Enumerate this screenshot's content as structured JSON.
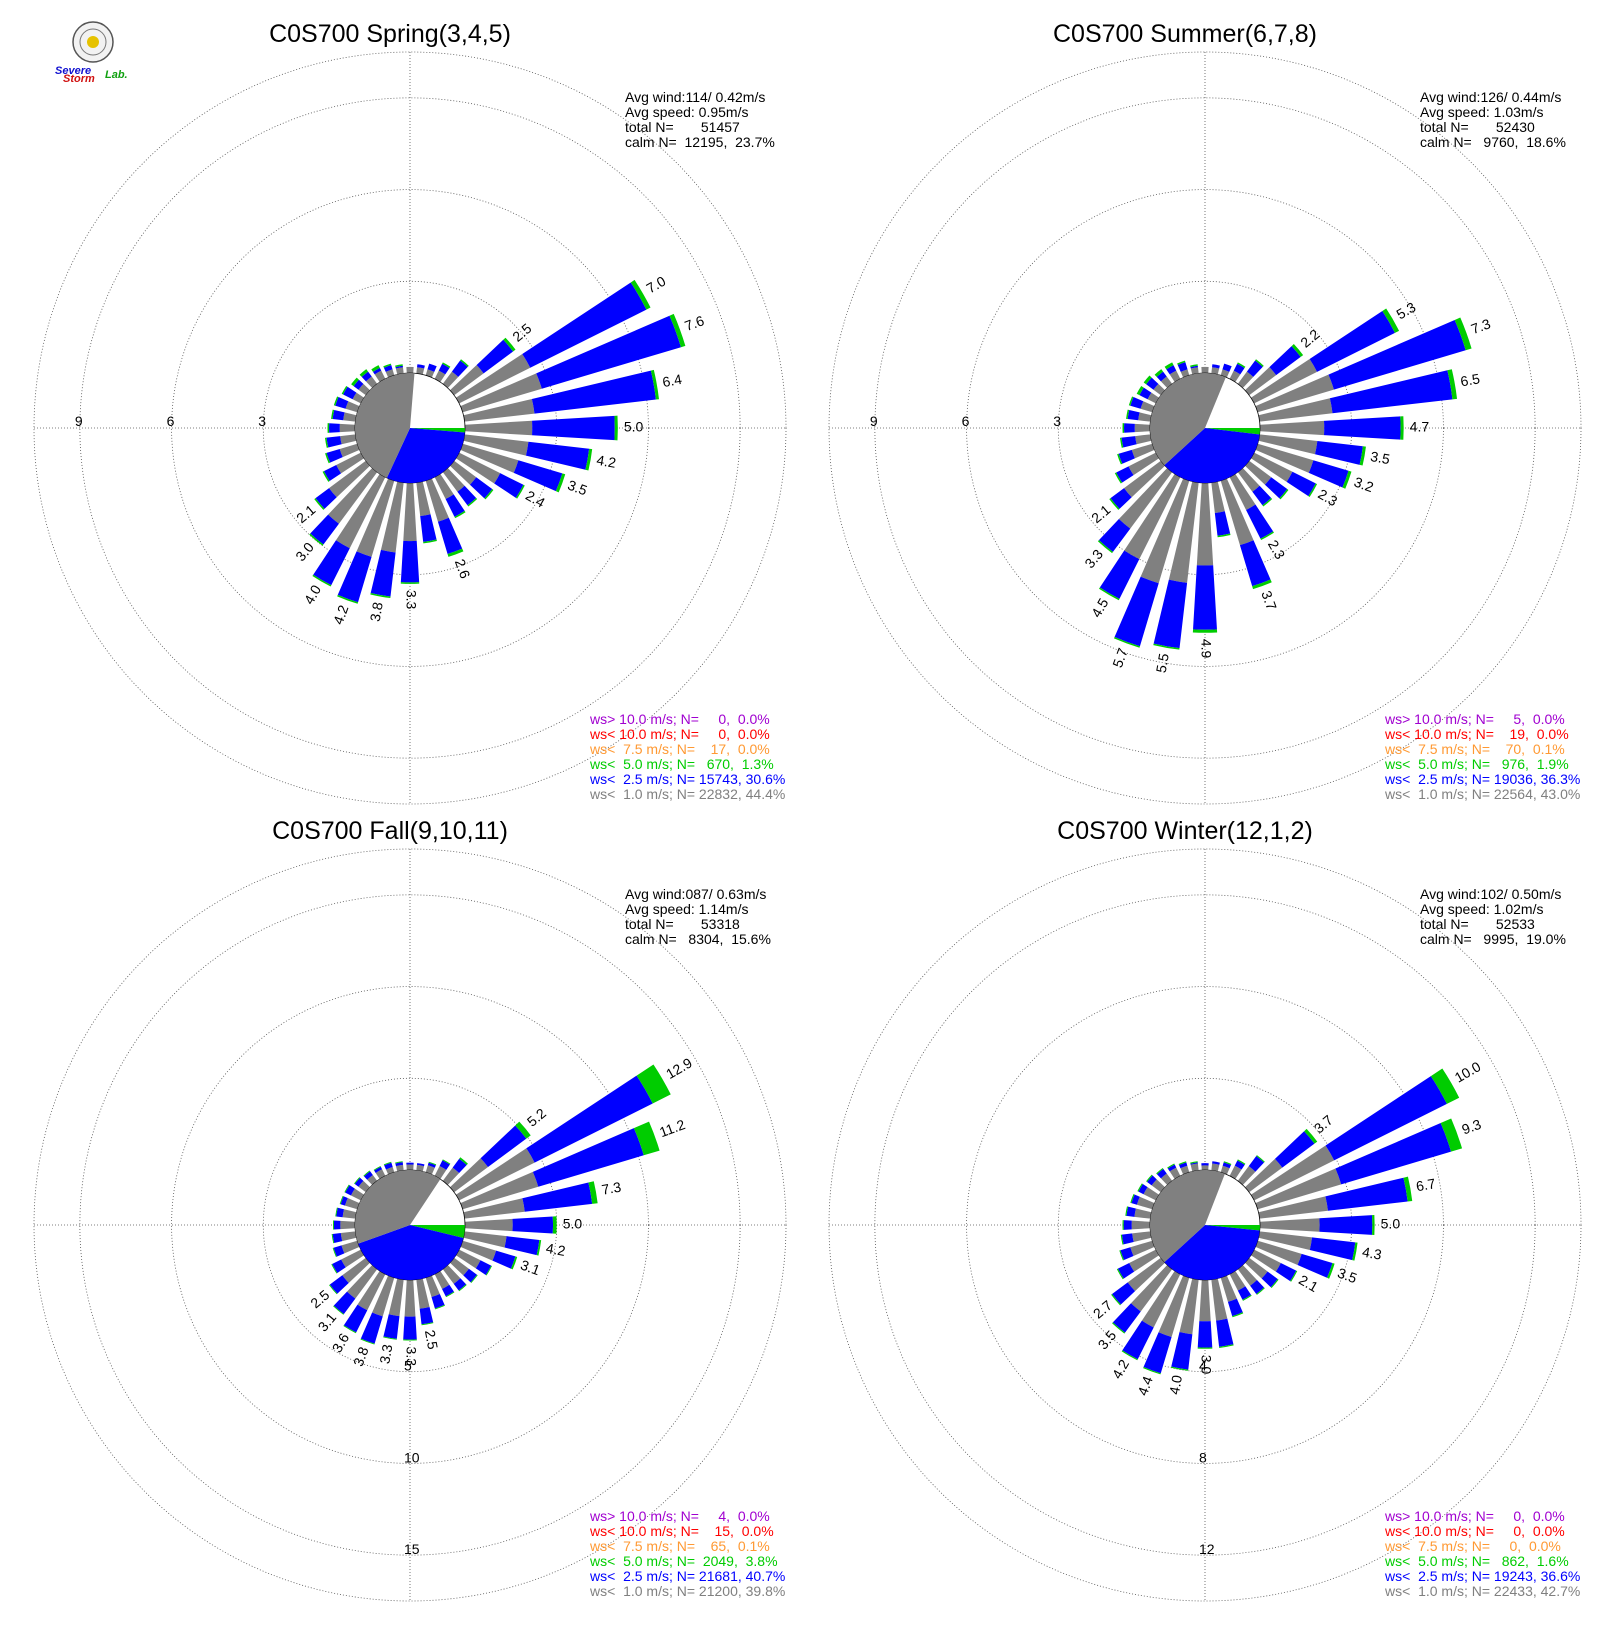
{
  "logo": {
    "word1": "Severe",
    "word2": "Storm",
    "word3": "Lab."
  },
  "colors": {
    "gray": "#808080",
    "blue": "#0000ff",
    "green": "#00cc00",
    "orange": "#ff9933",
    "red": "#ff0000",
    "purple": "#a000d0",
    "grid": "#555555"
  },
  "chart_data": [
    {
      "type": "wind_rose",
      "title": "C0S700 Spring(3,4,5)",
      "stats": [
        "Avg wind:114/ 0.42m/s",
        "Avg speed: 0.95m/s",
        "total N=       51457",
        "calm N=  12195,  23.7%"
      ],
      "ring_labels": [
        "3",
        "6",
        "9"
      ],
      "ring_values": [
        3,
        6,
        9
      ],
      "max_r": 10.5,
      "label_axis": "west",
      "calm_pct": 23.7,
      "calm_fractions": [
        {
          "color": "gray",
          "frac": 0.444
        },
        {
          "color": "blue",
          "frac": 0.306
        },
        {
          "color": "green",
          "frac": 0.013
        }
      ],
      "directions_deg": [
        0,
        10,
        20,
        30,
        40,
        50,
        60,
        70,
        80,
        90,
        100,
        110,
        120,
        130,
        140,
        150,
        160,
        170,
        180,
        190,
        200,
        210,
        220,
        230,
        240,
        250,
        260,
        270,
        280,
        290,
        300,
        310,
        320,
        330,
        340,
        350
      ],
      "totals": [
        0.2,
        0.3,
        0.4,
        0.6,
        1.0,
        2.5,
        7.0,
        7.6,
        6.4,
        5.0,
        4.2,
        3.5,
        2.4,
        1.6,
        1.4,
        1.5,
        2.6,
        2.0,
        3.3,
        3.8,
        4.2,
        4.0,
        3.0,
        2.1,
        1.4,
        1.1,
        1.0,
        0.9,
        0.8,
        0.8,
        0.7,
        0.6,
        0.6,
        0.5,
        0.4,
        0.3
      ],
      "gray": [
        0.2,
        0.2,
        0.2,
        0.3,
        0.5,
        1.2,
        2.6,
        2.7,
        2.3,
        2.2,
        2.1,
        1.9,
        1.5,
        0.9,
        0.8,
        0.8,
        1.4,
        1.1,
        1.9,
        2.3,
        2.6,
        2.6,
        2.1,
        1.5,
        0.9,
        0.6,
        0.5,
        0.5,
        0.4,
        0.4,
        0.3,
        0.3,
        0.3,
        0.3,
        0.2,
        0.2
      ],
      "green": [
        0,
        0,
        0,
        0.05,
        0.05,
        0.1,
        0.15,
        0.15,
        0.1,
        0.1,
        0.1,
        0.1,
        0.05,
        0.05,
        0.05,
        0.05,
        0.1,
        0.05,
        0.05,
        0.05,
        0.05,
        0.05,
        0.05,
        0.05,
        0.05,
        0.05,
        0.05,
        0.05,
        0.05,
        0.05,
        0.05,
        0.1,
        0.1,
        0.1,
        0.05,
        0.05
      ],
      "value_labels": [
        {
          "dir": 50,
          "text": "2.5"
        },
        {
          "dir": 60,
          "text": "7.0"
        },
        {
          "dir": 70,
          "text": "7.6"
        },
        {
          "dir": 80,
          "text": "6.4"
        },
        {
          "dir": 90,
          "text": "5.0"
        },
        {
          "dir": 100,
          "text": "4.2"
        },
        {
          "dir": 110,
          "text": "3.5"
        },
        {
          "dir": 120,
          "text": "2.4"
        },
        {
          "dir": 160,
          "text": "2.6"
        },
        {
          "dir": 180,
          "text": "3.3"
        },
        {
          "dir": 190,
          "text": "3.8"
        },
        {
          "dir": 200,
          "text": "4.2"
        },
        {
          "dir": 210,
          "text": "4.0"
        },
        {
          "dir": 220,
          "text": "3.0"
        },
        {
          "dir": 230,
          "text": "2.1"
        }
      ],
      "legend": [
        {
          "color": "purple",
          "text": "ws> 10.0 m/s; N=     0,  0.0%"
        },
        {
          "color": "red",
          "text": "ws< 10.0 m/s; N=     0,  0.0%"
        },
        {
          "color": "orange",
          "text": "ws<  7.5 m/s; N=    17,  0.0%"
        },
        {
          "color": "green",
          "text": "ws<  5.0 m/s; N=   670,  1.3%"
        },
        {
          "color": "blue",
          "text": "ws<  2.5 m/s; N= 15743, 30.6%"
        },
        {
          "color": "gray",
          "text": "ws<  1.0 m/s; N= 22832, 44.4%"
        }
      ]
    },
    {
      "type": "wind_rose",
      "title": "C0S700 Summer(6,7,8)",
      "stats": [
        "Avg wind:126/ 0.44m/s",
        "Avg speed: 1.03m/s",
        "total N=       52430",
        "calm N=   9760,  18.6%"
      ],
      "ring_labels": [
        "3",
        "6",
        "9"
      ],
      "ring_values": [
        3,
        6,
        9
      ],
      "max_r": 10.5,
      "label_axis": "west",
      "calm_pct": 18.6,
      "calm_fractions": [
        {
          "color": "gray",
          "frac": 0.43
        },
        {
          "color": "blue",
          "frac": 0.363
        },
        {
          "color": "green",
          "frac": 0.019
        }
      ],
      "directions_deg": [
        0,
        10,
        20,
        30,
        40,
        50,
        60,
        70,
        80,
        90,
        100,
        110,
        120,
        130,
        140,
        150,
        160,
        170,
        180,
        190,
        200,
        210,
        220,
        230,
        240,
        250,
        260,
        270,
        280,
        290,
        300,
        310,
        320,
        330,
        340,
        350
      ],
      "totals": [
        0.2,
        0.3,
        0.4,
        0.6,
        1.0,
        2.2,
        5.3,
        7.3,
        6.5,
        4.7,
        3.5,
        3.2,
        2.3,
        1.6,
        1.4,
        2.3,
        3.7,
        1.8,
        4.9,
        5.5,
        5.7,
        4.5,
        3.3,
        2.1,
        1.5,
        1.2,
        1.0,
        0.9,
        0.8,
        0.8,
        0.7,
        0.7,
        0.6,
        0.6,
        0.5,
        0.3
      ],
      "gray": [
        0.2,
        0.2,
        0.2,
        0.3,
        0.5,
        1.1,
        2.3,
        2.6,
        2.4,
        2.1,
        1.9,
        1.9,
        1.4,
        0.9,
        0.8,
        1.2,
        2.2,
        1.0,
        2.7,
        3.3,
        3.5,
        3.0,
        2.3,
        1.5,
        1.0,
        0.7,
        0.5,
        0.5,
        0.4,
        0.4,
        0.3,
        0.3,
        0.3,
        0.3,
        0.2,
        0.2
      ],
      "green": [
        0,
        0,
        0,
        0.05,
        0.05,
        0.1,
        0.15,
        0.2,
        0.15,
        0.1,
        0.1,
        0.1,
        0.05,
        0.05,
        0.05,
        0.05,
        0.1,
        0.05,
        0.1,
        0.05,
        0.05,
        0.05,
        0.05,
        0.05,
        0.05,
        0.05,
        0.05,
        0.05,
        0.05,
        0.05,
        0.1,
        0.1,
        0.1,
        0.1,
        0.05,
        0.05
      ],
      "value_labels": [
        {
          "dir": 50,
          "text": "2.2"
        },
        {
          "dir": 60,
          "text": "5.3"
        },
        {
          "dir": 70,
          "text": "7.3"
        },
        {
          "dir": 80,
          "text": "6.5"
        },
        {
          "dir": 90,
          "text": "4.7"
        },
        {
          "dir": 100,
          "text": "3.5"
        },
        {
          "dir": 110,
          "text": "3.2"
        },
        {
          "dir": 120,
          "text": "2.3"
        },
        {
          "dir": 150,
          "text": "2.3"
        },
        {
          "dir": 160,
          "text": "3.7"
        },
        {
          "dir": 180,
          "text": "4.9"
        },
        {
          "dir": 190,
          "text": "5.5"
        },
        {
          "dir": 200,
          "text": "5.7"
        },
        {
          "dir": 210,
          "text": "4.5"
        },
        {
          "dir": 220,
          "text": "3.3"
        },
        {
          "dir": 230,
          "text": "2.1"
        }
      ],
      "legend": [
        {
          "color": "purple",
          "text": "ws> 10.0 m/s; N=     5,  0.0%"
        },
        {
          "color": "red",
          "text": "ws< 10.0 m/s; N=    19,  0.0%"
        },
        {
          "color": "orange",
          "text": "ws<  7.5 m/s; N=    70,  0.1%"
        },
        {
          "color": "green",
          "text": "ws<  5.0 m/s; N=   976,  1.9%"
        },
        {
          "color": "blue",
          "text": "ws<  2.5 m/s; N= 19036, 36.3%"
        },
        {
          "color": "gray",
          "text": "ws<  1.0 m/s; N= 22564, 43.0%"
        }
      ]
    },
    {
      "type": "wind_rose",
      "title": "C0S700 Fall(9,10,11)",
      "stats": [
        "Avg wind:087/ 0.63m/s",
        "Avg speed: 1.14m/s",
        "total N=       53318",
        "calm N=   8304,  15.6%"
      ],
      "ring_labels": [
        "5",
        "10",
        "15"
      ],
      "ring_values": [
        5,
        10,
        15
      ],
      "max_r": 17.5,
      "label_axis": "south",
      "calm_pct": 15.6,
      "calm_fractions": [
        {
          "color": "gray",
          "frac": 0.398
        },
        {
          "color": "blue",
          "frac": 0.407
        },
        {
          "color": "green",
          "frac": 0.038
        }
      ],
      "directions_deg": [
        0,
        10,
        20,
        30,
        40,
        50,
        60,
        70,
        80,
        90,
        100,
        110,
        120,
        130,
        140,
        150,
        160,
        170,
        180,
        190,
        200,
        210,
        220,
        230,
        240,
        250,
        260,
        270,
        280,
        290,
        300,
        310,
        320,
        330,
        340,
        350
      ],
      "totals": [
        0.4,
        0.4,
        0.6,
        1.0,
        1.6,
        5.2,
        12.9,
        11.2,
        7.3,
        5.0,
        4.2,
        3.1,
        2.0,
        1.6,
        1.5,
        1.4,
        1.8,
        2.5,
        3.3,
        3.3,
        3.8,
        3.6,
        3.1,
        2.5,
        1.8,
        1.4,
        1.3,
        1.2,
        1.1,
        1.0,
        1.0,
        0.8,
        0.7,
        0.6,
        0.6,
        0.5
      ],
      "gray": [
        0.3,
        0.3,
        0.4,
        0.6,
        0.9,
        2.3,
        4.6,
        4.3,
        3.3,
        2.6,
        2.3,
        1.9,
        1.3,
        1.0,
        1.0,
        0.9,
        1.1,
        1.6,
        2.0,
        2.0,
        2.2,
        2.2,
        2.0,
        1.6,
        1.2,
        0.9,
        0.8,
        0.8,
        0.7,
        0.7,
        0.6,
        0.5,
        0.4,
        0.4,
        0.3,
        0.3
      ],
      "green": [
        0,
        0,
        0.05,
        0.05,
        0.1,
        0.3,
        1.1,
        0.9,
        0.3,
        0.2,
        0.1,
        0.1,
        0.05,
        0.05,
        0.05,
        0.05,
        0.05,
        0.05,
        0.05,
        0.05,
        0.05,
        0.05,
        0.05,
        0.05,
        0.05,
        0.05,
        0.05,
        0.05,
        0.05,
        0.05,
        0.05,
        0.05,
        0.05,
        0.05,
        0.05,
        0.05
      ],
      "value_labels": [
        {
          "dir": 50,
          "text": "5.2"
        },
        {
          "dir": 60,
          "text": "12.9"
        },
        {
          "dir": 70,
          "text": "11.2"
        },
        {
          "dir": 80,
          "text": "7.3"
        },
        {
          "dir": 90,
          "text": "5.0"
        },
        {
          "dir": 100,
          "text": "4.2"
        },
        {
          "dir": 110,
          "text": "3.1"
        },
        {
          "dir": 170,
          "text": "2.5"
        },
        {
          "dir": 180,
          "text": "3.3"
        },
        {
          "dir": 190,
          "text": "3.3"
        },
        {
          "dir": 200,
          "text": "3.8"
        },
        {
          "dir": 210,
          "text": "3.6"
        },
        {
          "dir": 220,
          "text": "3.1"
        },
        {
          "dir": 230,
          "text": "2.5"
        }
      ],
      "legend": [
        {
          "color": "purple",
          "text": "ws> 10.0 m/s; N=     4,  0.0%"
        },
        {
          "color": "red",
          "text": "ws< 10.0 m/s; N=    15,  0.0%"
        },
        {
          "color": "orange",
          "text": "ws<  7.5 m/s; N=    65,  0.1%"
        },
        {
          "color": "green",
          "text": "ws<  5.0 m/s; N=  2049,  3.8%"
        },
        {
          "color": "blue",
          "text": "ws<  2.5 m/s; N= 21681, 40.7%"
        },
        {
          "color": "gray",
          "text": "ws<  1.0 m/s; N= 21200, 39.8%"
        }
      ]
    },
    {
      "type": "wind_rose",
      "title": "C0S700 Winter(12,1,2)",
      "stats": [
        "Avg wind:102/ 0.50m/s",
        "Avg speed: 1.02m/s",
        "total N=       52533",
        "calm N=   9995,  19.0%"
      ],
      "ring_labels": [
        "4",
        "8",
        "12"
      ],
      "ring_values": [
        4,
        8,
        12
      ],
      "max_r": 14,
      "label_axis": "south",
      "calm_pct": 19.0,
      "calm_fractions": [
        {
          "color": "gray",
          "frac": 0.427
        },
        {
          "color": "blue",
          "frac": 0.366
        },
        {
          "color": "green",
          "frac": 0.016
        }
      ],
      "directions_deg": [
        0,
        10,
        20,
        30,
        40,
        50,
        60,
        70,
        80,
        90,
        100,
        110,
        120,
        130,
        140,
        150,
        160,
        170,
        180,
        190,
        200,
        210,
        220,
        230,
        240,
        250,
        260,
        270,
        280,
        290,
        300,
        310,
        320,
        330,
        340,
        350
      ],
      "totals": [
        0.3,
        0.4,
        0.5,
        0.8,
        1.4,
        3.7,
        10.0,
        9.3,
        6.7,
        5.0,
        4.3,
        3.5,
        2.1,
        1.6,
        1.4,
        1.3,
        1.8,
        3.0,
        3.0,
        4.0,
        4.4,
        4.2,
        3.5,
        2.7,
        1.9,
        1.5,
        1.3,
        1.2,
        1.1,
        1.0,
        0.9,
        0.8,
        0.7,
        0.6,
        0.5,
        0.4
      ],
      "gray": [
        0.2,
        0.3,
        0.3,
        0.5,
        0.8,
        1.8,
        3.9,
        3.8,
        3.0,
        2.6,
        2.3,
        2.0,
        1.3,
        1.0,
        0.9,
        0.8,
        1.1,
        1.8,
        1.8,
        2.4,
        2.7,
        2.6,
        2.3,
        1.8,
        1.3,
        1.0,
        0.8,
        0.8,
        0.7,
        0.7,
        0.6,
        0.5,
        0.4,
        0.4,
        0.3,
        0.3
      ],
      "green": [
        0,
        0,
        0.05,
        0.05,
        0.05,
        0.15,
        0.6,
        0.5,
        0.2,
        0.1,
        0.1,
        0.1,
        0.05,
        0.05,
        0.05,
        0.05,
        0.05,
        0.05,
        0.05,
        0.05,
        0.05,
        0.05,
        0.05,
        0.05,
        0.05,
        0.05,
        0.05,
        0.05,
        0.05,
        0.05,
        0.05,
        0.05,
        0.05,
        0.05,
        0.05,
        0.05
      ],
      "value_labels": [
        {
          "dir": 50,
          "text": "3.7"
        },
        {
          "dir": 60,
          "text": "10.0"
        },
        {
          "dir": 70,
          "text": "9.3"
        },
        {
          "dir": 80,
          "text": "6.7"
        },
        {
          "dir": 90,
          "text": "5.0"
        },
        {
          "dir": 100,
          "text": "4.3"
        },
        {
          "dir": 110,
          "text": "3.5"
        },
        {
          "dir": 120,
          "text": "2.1"
        },
        {
          "dir": 180,
          "text": "3.0"
        },
        {
          "dir": 190,
          "text": "4.0"
        },
        {
          "dir": 200,
          "text": "4.4"
        },
        {
          "dir": 210,
          "text": "4.2"
        },
        {
          "dir": 220,
          "text": "3.5"
        },
        {
          "dir": 230,
          "text": "2.7"
        }
      ],
      "legend": [
        {
          "color": "purple",
          "text": "ws> 10.0 m/s; N=     0,  0.0%"
        },
        {
          "color": "red",
          "text": "ws< 10.0 m/s; N=     0,  0.0%"
        },
        {
          "color": "orange",
          "text": "ws<  7.5 m/s; N=     0,  0.0%"
        },
        {
          "color": "green",
          "text": "ws<  5.0 m/s; N=   862,  1.6%"
        },
        {
          "color": "blue",
          "text": "ws<  2.5 m/s; N= 19243, 36.6%"
        },
        {
          "color": "gray",
          "text": "ws<  1.0 m/s; N= 22433, 42.7%"
        }
      ]
    }
  ]
}
